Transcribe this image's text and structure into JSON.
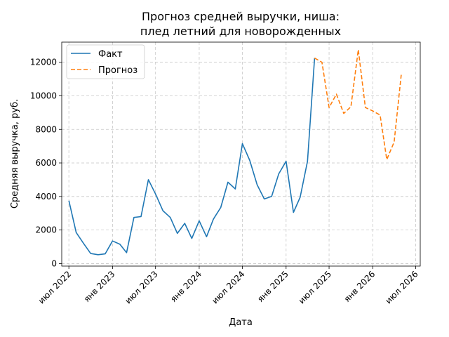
{
  "chart_data": {
    "type": "line",
    "title": [
      "Прогноз средней выручки, ниша:",
      "плед летний для новорожденных"
    ],
    "xlabel": "Дата",
    "ylabel": "Средняя выручка, руб.",
    "x_ticks": [
      {
        "date": "2022-07-01",
        "label": "июл 2022"
      },
      {
        "date": "2023-01-01",
        "label": "янв 2023"
      },
      {
        "date": "2023-07-01",
        "label": "июл 2023"
      },
      {
        "date": "2024-01-01",
        "label": "янв 2024"
      },
      {
        "date": "2024-07-01",
        "label": "июл 2024"
      },
      {
        "date": "2025-01-01",
        "label": "янв 2025"
      },
      {
        "date": "2025-07-01",
        "label": "июл 2025"
      },
      {
        "date": "2026-01-01",
        "label": "янв 2026"
      },
      {
        "date": "2026-07-01",
        "label": "июл 2026"
      }
    ],
    "y_ticks": [
      0,
      2000,
      4000,
      6000,
      8000,
      10000,
      12000
    ],
    "xlim": [
      "2022-06-01",
      "2026-07-20"
    ],
    "ylim": [
      -150,
      13200
    ],
    "grid": true,
    "legend_position": "top-left",
    "series": [
      {
        "name": "Факт",
        "color": "#1f77b4",
        "dash": "solid",
        "points": [
          {
            "x": "2022-07-01",
            "y": 3750
          },
          {
            "x": "2022-08-01",
            "y": 1850
          },
          {
            "x": "2022-09-01",
            "y": 1200
          },
          {
            "x": "2022-10-01",
            "y": 600
          },
          {
            "x": "2022-11-01",
            "y": 530
          },
          {
            "x": "2022-12-01",
            "y": 580
          },
          {
            "x": "2023-01-01",
            "y": 1350
          },
          {
            "x": "2023-02-01",
            "y": 1150
          },
          {
            "x": "2023-03-01",
            "y": 650
          },
          {
            "x": "2023-04-01",
            "y": 2750
          },
          {
            "x": "2023-05-01",
            "y": 2800
          },
          {
            "x": "2023-06-01",
            "y": 5000
          },
          {
            "x": "2023-07-01",
            "y": 4150
          },
          {
            "x": "2023-08-01",
            "y": 3150
          },
          {
            "x": "2023-09-01",
            "y": 2750
          },
          {
            "x": "2023-10-01",
            "y": 1800
          },
          {
            "x": "2023-11-01",
            "y": 2400
          },
          {
            "x": "2023-12-01",
            "y": 1500
          },
          {
            "x": "2024-01-01",
            "y": 2550
          },
          {
            "x": "2024-02-01",
            "y": 1600
          },
          {
            "x": "2024-03-01",
            "y": 2650
          },
          {
            "x": "2024-04-01",
            "y": 3350
          },
          {
            "x": "2024-05-01",
            "y": 4850
          },
          {
            "x": "2024-06-01",
            "y": 4450
          },
          {
            "x": "2024-07-01",
            "y": 7150
          },
          {
            "x": "2024-08-01",
            "y": 6150
          },
          {
            "x": "2024-09-01",
            "y": 4700
          },
          {
            "x": "2024-10-01",
            "y": 3850
          },
          {
            "x": "2024-11-01",
            "y": 4000
          },
          {
            "x": "2024-12-01",
            "y": 5350
          },
          {
            "x": "2025-01-01",
            "y": 6100
          },
          {
            "x": "2025-02-01",
            "y": 3050
          },
          {
            "x": "2025-03-01",
            "y": 3950
          },
          {
            "x": "2025-04-01",
            "y": 6100
          },
          {
            "x": "2025-05-01",
            "y": 12250
          }
        ]
      },
      {
        "name": "Прогноз",
        "color": "#ff7f0e",
        "dash": "dashed",
        "points": [
          {
            "x": "2025-05-01",
            "y": 12250
          },
          {
            "x": "2025-06-01",
            "y": 12000
          },
          {
            "x": "2025-07-01",
            "y": 9300
          },
          {
            "x": "2025-08-01",
            "y": 10100
          },
          {
            "x": "2025-09-01",
            "y": 8950
          },
          {
            "x": "2025-10-01",
            "y": 9350
          },
          {
            "x": "2025-11-01",
            "y": 12750
          },
          {
            "x": "2025-12-01",
            "y": 9300
          },
          {
            "x": "2026-01-01",
            "y": 9100
          },
          {
            "x": "2026-02-01",
            "y": 8850
          },
          {
            "x": "2026-03-01",
            "y": 6200
          },
          {
            "x": "2026-04-01",
            "y": 7250
          },
          {
            "x": "2026-05-01",
            "y": 11250
          }
        ]
      }
    ]
  }
}
